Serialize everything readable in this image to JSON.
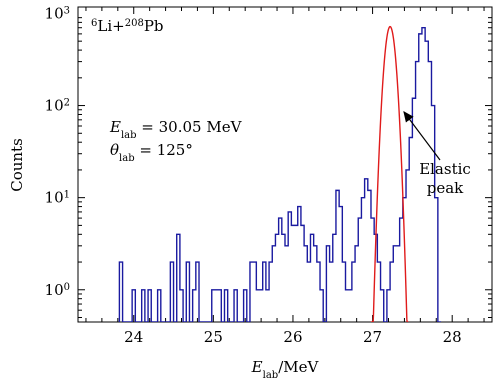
{
  "chart_data": {
    "type": "line",
    "title": "",
    "xlabel": "Elab/MeV",
    "ylabel": "Counts",
    "xlim": [
      23.3,
      28.5
    ],
    "ylim_log10": [
      -0.35,
      3.07
    ],
    "yscale": "log",
    "x_ticks": [
      24,
      25,
      26,
      27,
      28
    ],
    "y_ticks": [
      1,
      10,
      100,
      1000
    ],
    "reaction_label": {
      "li": "6",
      "pb": "208",
      "text_li": "Li",
      "plus": "+",
      "text_pb": "Pb"
    },
    "annotation_energy": {
      "symbol": "E",
      "sub": "lab",
      "value": " = 30.05 MeV"
    },
    "annotation_angle": {
      "symbol": "θ",
      "sub": "lab",
      "value": " = 125°"
    },
    "arrow_label": [
      "Elastic",
      "peak"
    ],
    "series": [
      {
        "kind": "histogram",
        "color": "#1a1aa0",
        "bin_width": 0.04,
        "x_start": 23.82,
        "counts": [
          2,
          0,
          0,
          0,
          1,
          0,
          0,
          1,
          0,
          1,
          0,
          0,
          1,
          0,
          0,
          0,
          2,
          0,
          4,
          1,
          0,
          2,
          0,
          1,
          2,
          0,
          0,
          0,
          0,
          1,
          1,
          1,
          0,
          1,
          0,
          0,
          1,
          0,
          0,
          1,
          0,
          2,
          2,
          1,
          1,
          2,
          1,
          2,
          3,
          4,
          6,
          4,
          3,
          7,
          5,
          5,
          8,
          5,
          3,
          2,
          4,
          3,
          2,
          1,
          0,
          3,
          2,
          4,
          12,
          8,
          2,
          1,
          1,
          2,
          3,
          6,
          10,
          16,
          12,
          6,
          4,
          2,
          1,
          0,
          1,
          2,
          3,
          3,
          6,
          10,
          20,
          45,
          120,
          300,
          600,
          700,
          500,
          300,
          100,
          10,
          0
        ]
      },
      {
        "kind": "gaussian-fit",
        "color": "#e01b1b",
        "mean": 27.22,
        "sigma": 0.055,
        "amplitude": 720,
        "x_range": [
          26.98,
          27.45
        ]
      }
    ]
  }
}
